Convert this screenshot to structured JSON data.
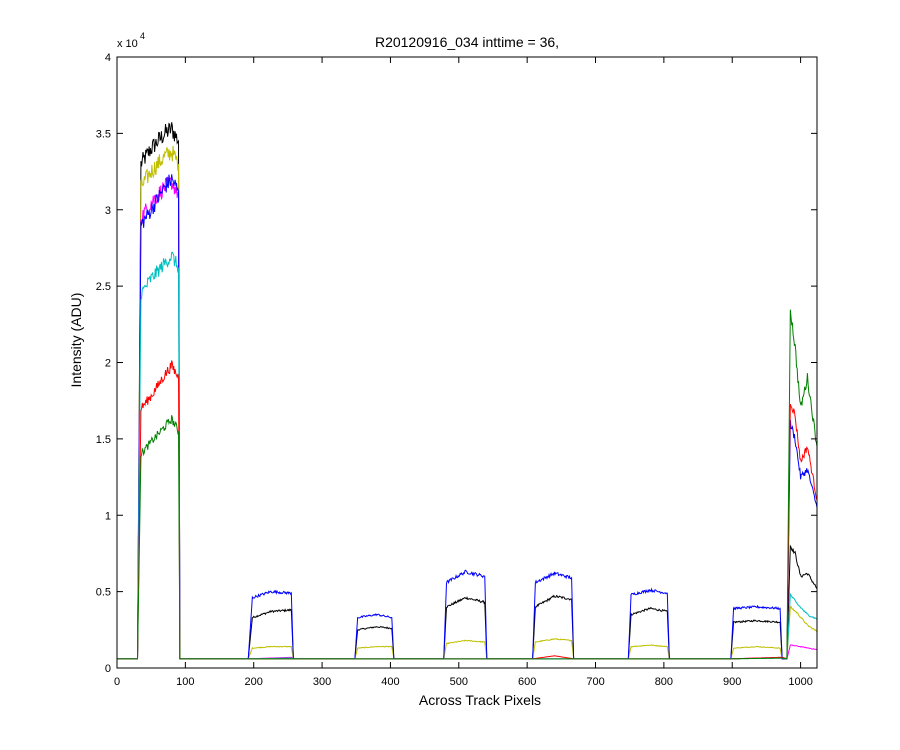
{
  "chart_data": {
    "type": "line",
    "title": "R20120916_034 inttime = 36,",
    "xlabel": "Across Track Pixels",
    "ylabel": "Intensity (ADU)",
    "y_multiplier_label": "x 10",
    "y_multiplier_exponent": "4",
    "xlim": [
      0,
      1024
    ],
    "ylim": [
      0,
      40000
    ],
    "xticks": [
      0,
      100,
      200,
      300,
      400,
      500,
      600,
      700,
      800,
      900,
      1000
    ],
    "xtick_labels": [
      "0",
      "100",
      "200",
      "300",
      "400",
      "500",
      "600",
      "700",
      "800",
      "900",
      "1000"
    ],
    "yticks": [
      0,
      5000,
      10000,
      15000,
      20000,
      25000,
      30000,
      35000,
      40000
    ],
    "ytick_labels": [
      "0",
      "0.5",
      "1",
      "1.5",
      "2",
      "2.5",
      "3",
      "3.5",
      "4"
    ],
    "grid": false,
    "legend": "none",
    "baseline": 600,
    "series": [
      {
        "color": "#000000",
        "values": [
          [
            0,
            600
          ],
          [
            30,
            600
          ],
          [
            35,
            33000
          ],
          [
            50,
            34000
          ],
          [
            70,
            35000
          ],
          [
            80,
            35300
          ],
          [
            90,
            34500
          ],
          [
            92,
            600
          ],
          [
            192,
            600
          ],
          [
            198,
            3300
          ],
          [
            225,
            3700
          ],
          [
            255,
            3800
          ],
          [
            258,
            600
          ],
          [
            348,
            600
          ],
          [
            352,
            2500
          ],
          [
            380,
            2700
          ],
          [
            402,
            2600
          ],
          [
            405,
            600
          ],
          [
            478,
            600
          ],
          [
            482,
            4000
          ],
          [
            510,
            4600
          ],
          [
            538,
            4300
          ],
          [
            541,
            600
          ],
          [
            608,
            600
          ],
          [
            612,
            4000
          ],
          [
            640,
            4700
          ],
          [
            665,
            4500
          ],
          [
            668,
            600
          ],
          [
            748,
            600
          ],
          [
            752,
            3500
          ],
          [
            780,
            3900
          ],
          [
            805,
            3700
          ],
          [
            808,
            600
          ],
          [
            898,
            600
          ],
          [
            902,
            3000
          ],
          [
            935,
            3100
          ],
          [
            970,
            3000
          ],
          [
            973,
            600
          ],
          [
            980,
            600
          ],
          [
            985,
            8000
          ],
          [
            992,
            7500
          ],
          [
            1000,
            6000
          ],
          [
            1010,
            6200
          ],
          [
            1024,
            5200
          ]
        ]
      },
      {
        "color": "#bfbf00",
        "values": [
          [
            0,
            600
          ],
          [
            30,
            600
          ],
          [
            35,
            31500
          ],
          [
            50,
            32500
          ],
          [
            70,
            33500
          ],
          [
            80,
            33800
          ],
          [
            90,
            33000
          ],
          [
            92,
            600
          ],
          [
            192,
            600
          ],
          [
            198,
            1300
          ],
          [
            225,
            1400
          ],
          [
            255,
            1400
          ],
          [
            258,
            600
          ],
          [
            348,
            600
          ],
          [
            352,
            1300
          ],
          [
            380,
            1400
          ],
          [
            402,
            1400
          ],
          [
            405,
            600
          ],
          [
            478,
            600
          ],
          [
            482,
            1600
          ],
          [
            510,
            1800
          ],
          [
            538,
            1700
          ],
          [
            541,
            600
          ],
          [
            608,
            600
          ],
          [
            612,
            1700
          ],
          [
            640,
            1900
          ],
          [
            665,
            1800
          ],
          [
            668,
            600
          ],
          [
            748,
            600
          ],
          [
            752,
            1400
          ],
          [
            780,
            1500
          ],
          [
            805,
            1400
          ],
          [
            808,
            600
          ],
          [
            898,
            600
          ],
          [
            902,
            1300
          ],
          [
            935,
            1400
          ],
          [
            970,
            1300
          ],
          [
            973,
            600
          ],
          [
            980,
            600
          ],
          [
            985,
            4000
          ],
          [
            995,
            3600
          ],
          [
            1010,
            2800
          ],
          [
            1024,
            2400
          ]
        ]
      },
      {
        "color": "#ff00ff",
        "values": [
          [
            0,
            600
          ],
          [
            30,
            600
          ],
          [
            35,
            29500
          ],
          [
            50,
            30500
          ],
          [
            70,
            31500
          ],
          [
            80,
            31800
          ],
          [
            90,
            31000
          ],
          [
            92,
            600
          ],
          [
            192,
            600
          ],
          [
            255,
            700
          ],
          [
            258,
            600
          ],
          [
            898,
            600
          ],
          [
            973,
            700
          ],
          [
            980,
            600
          ],
          [
            985,
            1500
          ],
          [
            1000,
            1400
          ],
          [
            1024,
            1200
          ]
        ]
      },
      {
        "color": "#0000ff",
        "values": [
          [
            0,
            600
          ],
          [
            30,
            600
          ],
          [
            35,
            29000
          ],
          [
            50,
            30000
          ],
          [
            70,
            31500
          ],
          [
            80,
            32000
          ],
          [
            90,
            31200
          ],
          [
            92,
            600
          ],
          [
            192,
            600
          ],
          [
            198,
            4600
          ],
          [
            225,
            5000
          ],
          [
            255,
            4900
          ],
          [
            258,
            600
          ],
          [
            348,
            600
          ],
          [
            352,
            3300
          ],
          [
            380,
            3500
          ],
          [
            402,
            3300
          ],
          [
            405,
            600
          ],
          [
            478,
            600
          ],
          [
            482,
            5600
          ],
          [
            510,
            6300
          ],
          [
            538,
            6000
          ],
          [
            541,
            600
          ],
          [
            608,
            600
          ],
          [
            612,
            5600
          ],
          [
            640,
            6200
          ],
          [
            665,
            5900
          ],
          [
            668,
            600
          ],
          [
            748,
            600
          ],
          [
            752,
            4800
          ],
          [
            780,
            5100
          ],
          [
            805,
            4900
          ],
          [
            808,
            600
          ],
          [
            898,
            600
          ],
          [
            902,
            3900
          ],
          [
            935,
            4000
          ],
          [
            970,
            3900
          ],
          [
            973,
            600
          ],
          [
            980,
            600
          ],
          [
            985,
            16000
          ],
          [
            992,
            15000
          ],
          [
            1000,
            12500
          ],
          [
            1010,
            13000
          ],
          [
            1024,
            10500
          ]
        ]
      },
      {
        "color": "#00bfbf",
        "values": [
          [
            0,
            600
          ],
          [
            30,
            600
          ],
          [
            35,
            24500
          ],
          [
            50,
            25500
          ],
          [
            70,
            26500
          ],
          [
            80,
            27000
          ],
          [
            90,
            26200
          ],
          [
            92,
            600
          ],
          [
            192,
            600
          ],
          [
            255,
            650
          ],
          [
            258,
            600
          ],
          [
            898,
            600
          ],
          [
            973,
            650
          ],
          [
            980,
            600
          ],
          [
            985,
            4800
          ],
          [
            995,
            4200
          ],
          [
            1010,
            3500
          ],
          [
            1024,
            3200
          ]
        ]
      },
      {
        "color": "#ff0000",
        "values": [
          [
            0,
            600
          ],
          [
            30,
            600
          ],
          [
            35,
            17000
          ],
          [
            50,
            17800
          ],
          [
            70,
            19200
          ],
          [
            80,
            19800
          ],
          [
            90,
            19000
          ],
          [
            92,
            600
          ],
          [
            192,
            600
          ],
          [
            608,
            600
          ],
          [
            640,
            800
          ],
          [
            668,
            600
          ],
          [
            898,
            600
          ],
          [
            973,
            700
          ],
          [
            980,
            600
          ],
          [
            985,
            17500
          ],
          [
            992,
            16500
          ],
          [
            1000,
            13500
          ],
          [
            1010,
            14500
          ],
          [
            1024,
            11000
          ]
        ]
      },
      {
        "color": "#007f00",
        "values": [
          [
            0,
            600
          ],
          [
            30,
            600
          ],
          [
            35,
            14000
          ],
          [
            50,
            14800
          ],
          [
            70,
            15800
          ],
          [
            80,
            16300
          ],
          [
            90,
            15500
          ],
          [
            92,
            600
          ],
          [
            192,
            600
          ],
          [
            898,
            600
          ],
          [
            973,
            650
          ],
          [
            980,
            600
          ],
          [
            985,
            23500
          ],
          [
            992,
            21000
          ],
          [
            1000,
            17000
          ],
          [
            1010,
            19000
          ],
          [
            1024,
            14500
          ]
        ]
      }
    ]
  }
}
